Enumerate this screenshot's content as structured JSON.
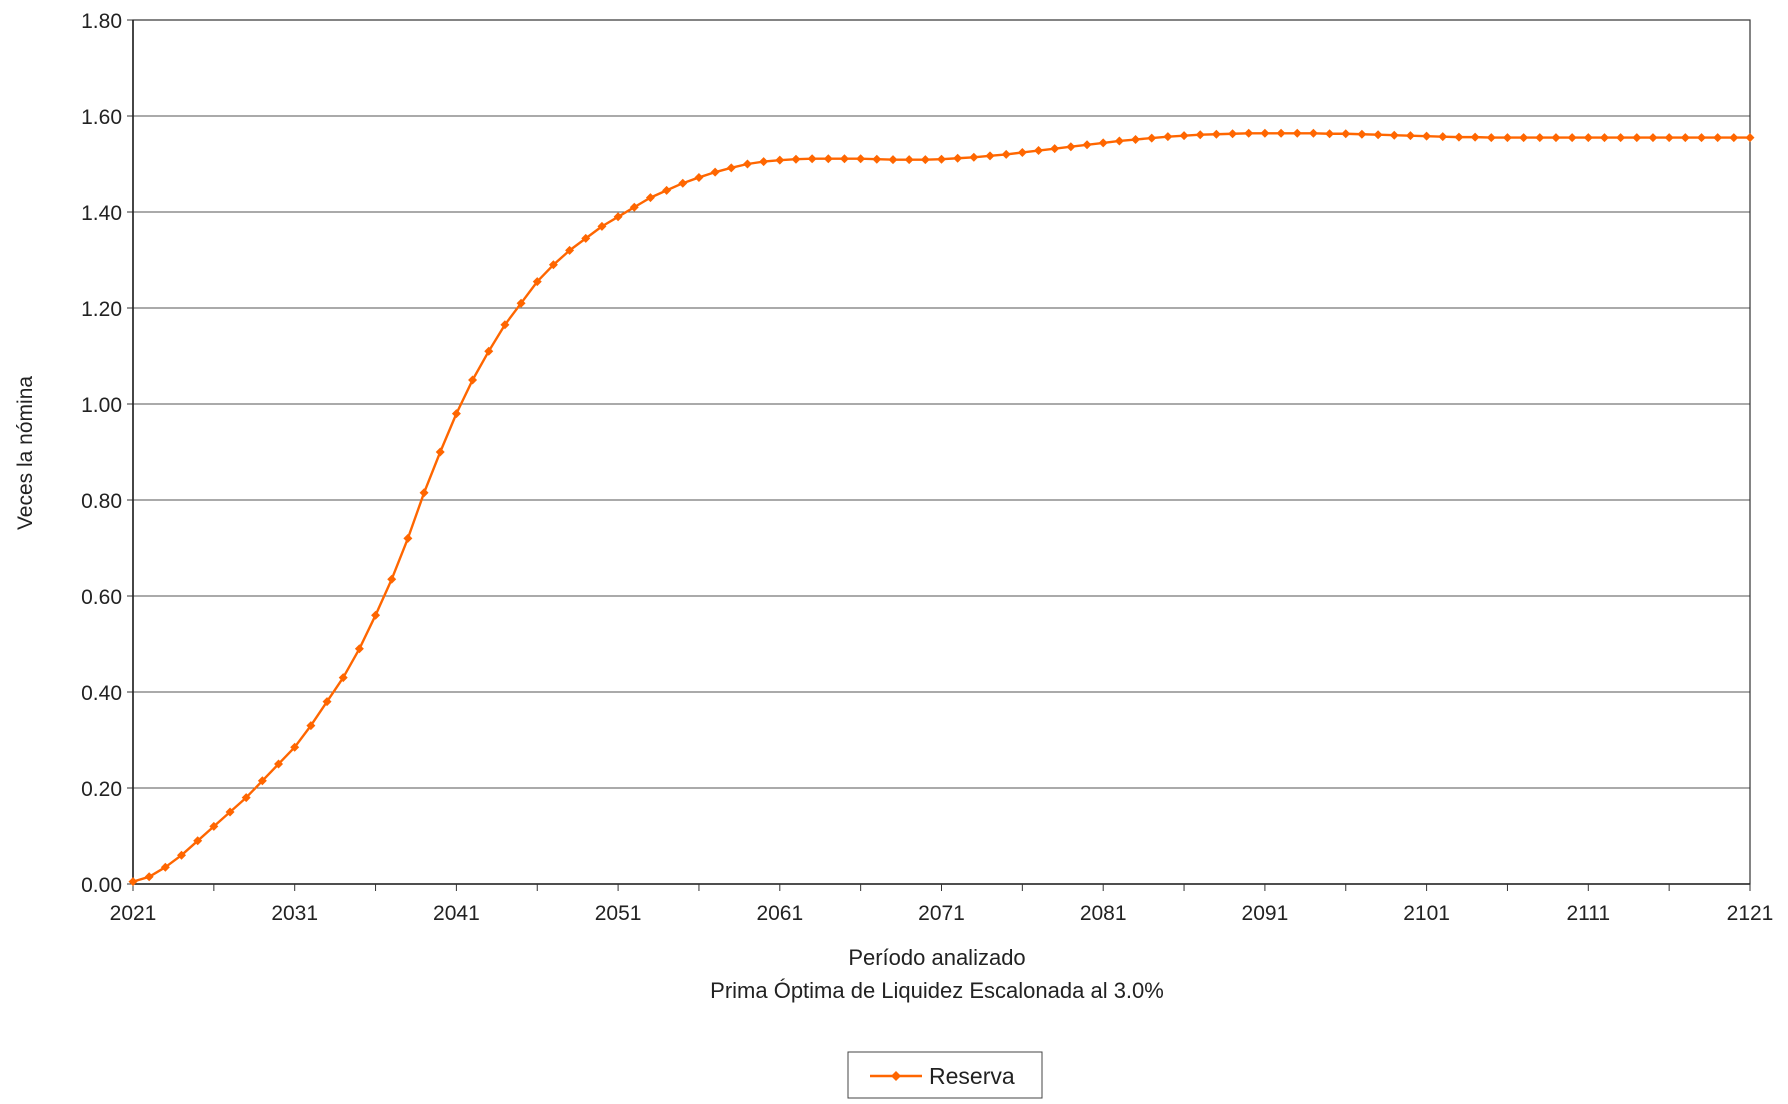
{
  "chart_data": {
    "type": "line",
    "title": "",
    "xlabel": "Período analizado",
    "subtitle": "Prima Óptima de Liquidez Escalonada al 3.0%",
    "ylabel": "Veces la nómina",
    "xlim": [
      2021,
      2121
    ],
    "ylim": [
      0,
      1.8
    ],
    "x_ticks": [
      "2021",
      "2031",
      "2041",
      "2051",
      "2061",
      "2071",
      "2081",
      "2091",
      "2101",
      "2111",
      "2121"
    ],
    "y_ticks": [
      "0.00",
      "0.20",
      "0.40",
      "0.60",
      "0.80",
      "1.00",
      "1.20",
      "1.40",
      "1.60",
      "1.80"
    ],
    "grid": true,
    "legend_position": "bottom-center",
    "series": [
      {
        "name": "Reserva",
        "color": "#FF6600",
        "marker": "diamond",
        "x": [
          2021,
          2022,
          2023,
          2024,
          2025,
          2026,
          2027,
          2028,
          2029,
          2030,
          2031,
          2032,
          2033,
          2034,
          2035,
          2036,
          2037,
          2038,
          2039,
          2040,
          2041,
          2042,
          2043,
          2044,
          2045,
          2046,
          2047,
          2048,
          2049,
          2050,
          2051,
          2052,
          2053,
          2054,
          2055,
          2056,
          2057,
          2058,
          2059,
          2060,
          2061,
          2062,
          2063,
          2064,
          2065,
          2066,
          2067,
          2068,
          2069,
          2070,
          2071,
          2072,
          2073,
          2074,
          2075,
          2076,
          2077,
          2078,
          2079,
          2080,
          2081,
          2082,
          2083,
          2084,
          2085,
          2086,
          2087,
          2088,
          2089,
          2090,
          2091,
          2092,
          2093,
          2094,
          2095,
          2096,
          2097,
          2098,
          2099,
          2100,
          2101,
          2102,
          2103,
          2104,
          2105,
          2106,
          2107,
          2108,
          2109,
          2110,
          2111,
          2112,
          2113,
          2114,
          2115,
          2116,
          2117,
          2118,
          2119,
          2120,
          2121
        ],
        "values": [
          0.005,
          0.015,
          0.035,
          0.06,
          0.09,
          0.12,
          0.15,
          0.18,
          0.215,
          0.25,
          0.285,
          0.33,
          0.38,
          0.43,
          0.49,
          0.56,
          0.635,
          0.72,
          0.815,
          0.9,
          0.98,
          1.05,
          1.11,
          1.165,
          1.21,
          1.255,
          1.29,
          1.32,
          1.345,
          1.37,
          1.39,
          1.41,
          1.43,
          1.445,
          1.46,
          1.472,
          1.483,
          1.492,
          1.5,
          1.505,
          1.508,
          1.51,
          1.511,
          1.511,
          1.511,
          1.511,
          1.51,
          1.509,
          1.509,
          1.509,
          1.51,
          1.512,
          1.514,
          1.517,
          1.52,
          1.524,
          1.528,
          1.532,
          1.536,
          1.54,
          1.544,
          1.548,
          1.551,
          1.554,
          1.557,
          1.559,
          1.561,
          1.562,
          1.563,
          1.564,
          1.564,
          1.564,
          1.564,
          1.564,
          1.563,
          1.563,
          1.562,
          1.561,
          1.56,
          1.559,
          1.558,
          1.557,
          1.556,
          1.556,
          1.555,
          1.555,
          1.555,
          1.555,
          1.555,
          1.555,
          1.555,
          1.555,
          1.555,
          1.555,
          1.555,
          1.555,
          1.555,
          1.555,
          1.555,
          1.555,
          1.555
        ]
      }
    ]
  }
}
